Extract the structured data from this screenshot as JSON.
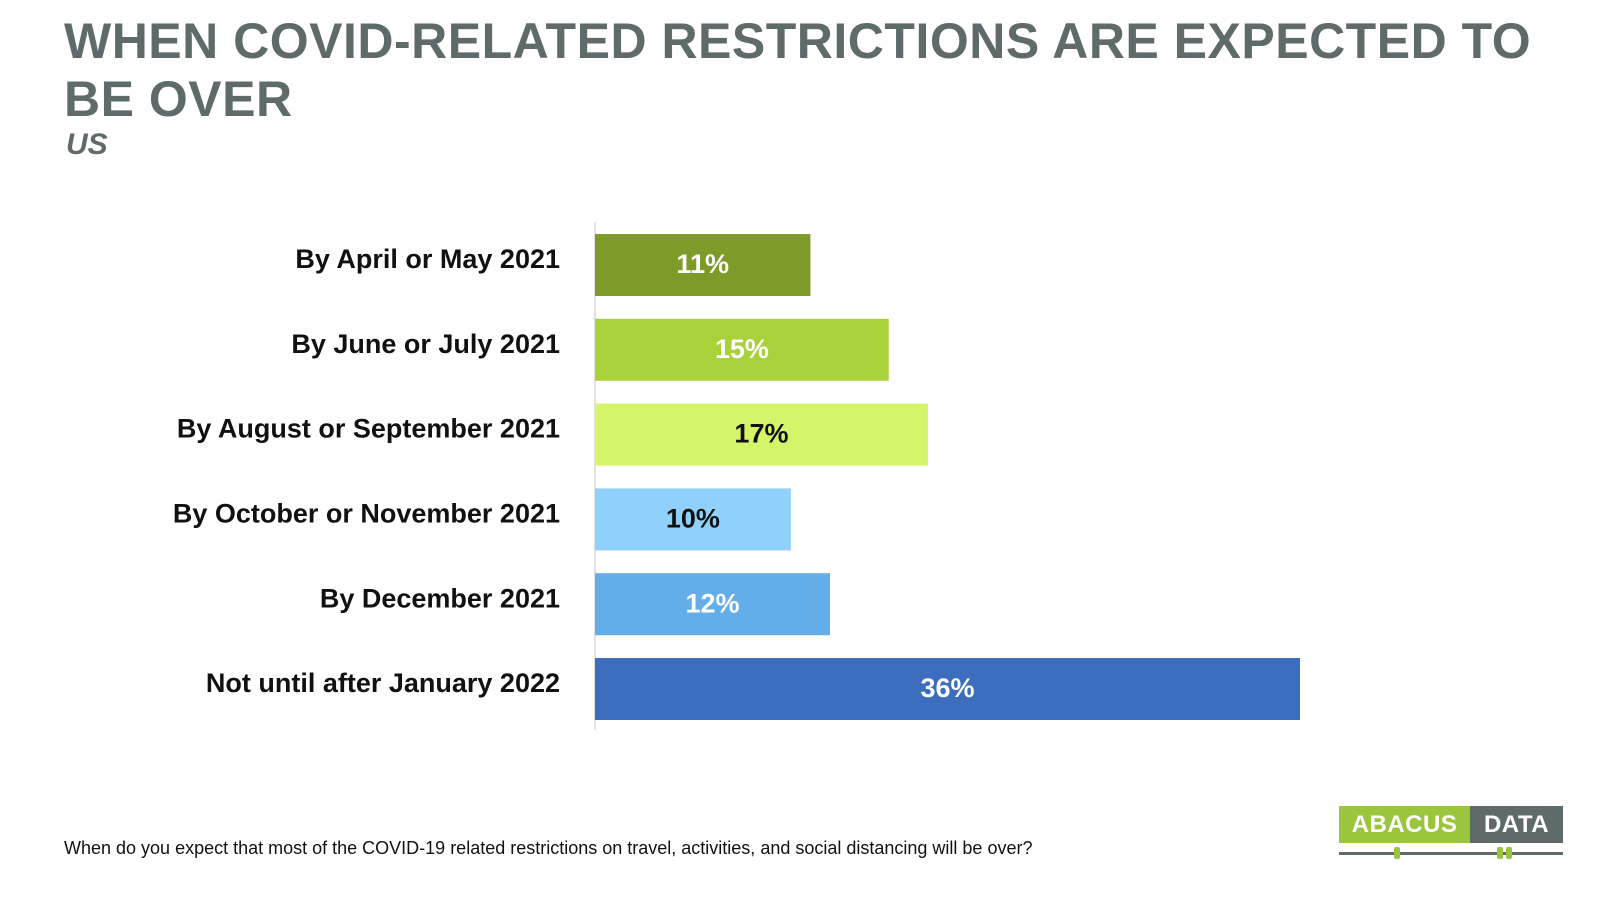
{
  "header": {
    "title": "WHEN COVID-RELATED RESTRICTIONS ARE EXPECTED TO BE OVER",
    "subtitle": "US"
  },
  "footnote": "When do you expect that most of the COVID-19 related restrictions on travel, activities, and social distancing will be over?",
  "logo": {
    "left_text": "ABACUS",
    "right_text": "DATA",
    "left_color": "#9bc53d",
    "right_color": "#5f6b6b"
  },
  "chart_data": {
    "type": "bar",
    "orientation": "horizontal",
    "categories": [
      "By April or May 2021",
      "By June or July 2021",
      "By August or September 2021",
      "By October or November 2021",
      "By December 2021",
      "Not until after January 2022"
    ],
    "values": [
      11,
      15,
      17,
      10,
      12,
      36
    ],
    "value_labels": [
      "11%",
      "15%",
      "17%",
      "10%",
      "12%",
      "36%"
    ],
    "unit": "%",
    "colors": [
      "#7e9b2a",
      "#a8d13a",
      "#d4f56a",
      "#8fd1fb",
      "#63ade9",
      "#3d6dbd"
    ],
    "label_colors": [
      "#ffffff",
      "#ffffff",
      "#111111",
      "#111111",
      "#ffffff",
      "#ffffff"
    ],
    "xlim": [
      0,
      36
    ],
    "grid": false,
    "legend": "none",
    "title": "WHEN COVID-RELATED RESTRICTIONS ARE EXPECTED TO BE OVER",
    "subtitle": "US",
    "xlabel": "",
    "ylabel": ""
  }
}
